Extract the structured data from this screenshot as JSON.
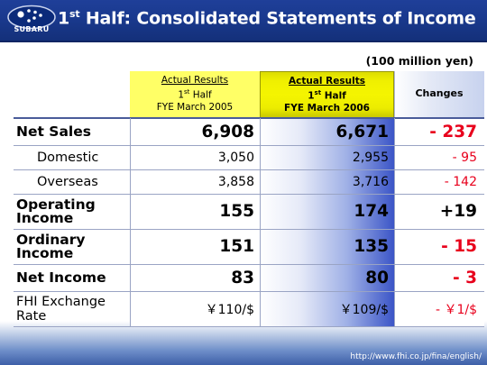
{
  "header": {
    "logo_text": "SUBARU",
    "title_pre": "1",
    "title_sup": "st",
    "title_post": " Half: Consolidated Statements of Income"
  },
  "unit": "(100 million yen)",
  "columns": {
    "prev": {
      "line1": "Actual Results",
      "line2_pre": "1",
      "line2_sup": "st",
      "line2_post": " Half",
      "line3": "FYE March 2005"
    },
    "cur": {
      "line1": "Actual Results",
      "line2_pre": "1",
      "line2_sup": "st",
      "line2_post": " Half",
      "line3": "FYE March 2006"
    },
    "chg": "Changes"
  },
  "rows": [
    {
      "label": "Net Sales",
      "prev": "6,908",
      "cur": "6,671",
      "chg": "- 237"
    },
    {
      "label": "Domestic",
      "prev": "3,050",
      "cur": "2,955",
      "chg": "- 95"
    },
    {
      "label": "Overseas",
      "prev": "3,858",
      "cur": "3,716",
      "chg": "- 142"
    },
    {
      "label_1": "Operating",
      "label_2": "Income",
      "prev": "155",
      "cur": "174",
      "chg": "+19"
    },
    {
      "label_1": "Ordinary",
      "label_2": "Income",
      "prev": "151",
      "cur": "135",
      "chg": "- 15"
    },
    {
      "label": "Net Income",
      "prev": "83",
      "cur": "80",
      "chg": "- 3"
    },
    {
      "label_1": "FHI Exchange",
      "label_2": "Rate",
      "prev": "￥110/$",
      "cur": "￥109/$",
      "chg": "- ￥1/$"
    }
  ],
  "footer_url": "http://www.fhi.co.jp/fina/english/",
  "colors": {
    "header_bg": "#1a3a8f",
    "prev_header": "#ffff66",
    "negative": "#e8001c"
  }
}
